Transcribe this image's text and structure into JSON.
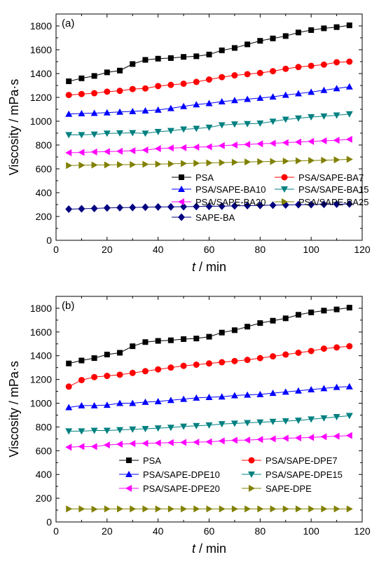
{
  "chart_data": [
    {
      "type": "line",
      "panel_label": "(a)",
      "xlabel_italic": "t",
      "xlabel_rest": " / min",
      "ylabel": "Viscosity / mPa·s",
      "xlim": [
        0,
        120
      ],
      "ylim": [
        0,
        1900
      ],
      "xticks": [
        0,
        20,
        40,
        60,
        80,
        100,
        120
      ],
      "yticks": [
        0,
        200,
        400,
        600,
        800,
        1000,
        1200,
        1400,
        1600,
        1800
      ],
      "grid": false,
      "legend": "bottom-center",
      "x": [
        5,
        10,
        15,
        20,
        25,
        30,
        35,
        40,
        45,
        50,
        55,
        60,
        65,
        70,
        75,
        80,
        85,
        90,
        95,
        100,
        105,
        110,
        115
      ],
      "series": [
        {
          "name": "PSA",
          "marker": "square",
          "color": "#000000",
          "values": [
            1335,
            1360,
            1380,
            1410,
            1425,
            1480,
            1515,
            1525,
            1530,
            1540,
            1545,
            1560,
            1595,
            1615,
            1645,
            1675,
            1695,
            1715,
            1745,
            1765,
            1780,
            1790,
            1805
          ]
        },
        {
          "name": "PSA/SAPE-BA7",
          "marker": "circle",
          "color": "#ff0000",
          "values": [
            1220,
            1228,
            1235,
            1248,
            1255,
            1270,
            1275,
            1295,
            1305,
            1315,
            1330,
            1350,
            1370,
            1385,
            1395,
            1405,
            1420,
            1440,
            1455,
            1465,
            1475,
            1495,
            1500
          ]
        },
        {
          "name": "PSA/SAPE-BA10",
          "marker": "triangle-up",
          "color": "#0000ff",
          "values": [
            1060,
            1065,
            1068,
            1072,
            1078,
            1082,
            1088,
            1095,
            1108,
            1125,
            1140,
            1150,
            1165,
            1175,
            1185,
            1195,
            1205,
            1220,
            1232,
            1245,
            1260,
            1275,
            1290
          ]
        },
        {
          "name": "PSA/SAPE-BA15",
          "marker": "triangle-down",
          "color": "#008080",
          "values": [
            885,
            885,
            890,
            898,
            900,
            902,
            898,
            912,
            920,
            932,
            938,
            948,
            968,
            975,
            978,
            982,
            998,
            1015,
            1025,
            1035,
            1042,
            1050,
            1060
          ]
        },
        {
          "name": "PSA/SAPE-BA20",
          "marker": "triangle-left",
          "color": "#ff00ff",
          "values": [
            735,
            738,
            742,
            745,
            748,
            752,
            758,
            770,
            775,
            778,
            782,
            785,
            795,
            800,
            805,
            810,
            815,
            820,
            825,
            830,
            835,
            840,
            848
          ]
        },
        {
          "name": "PSA/SAPE-BA25",
          "marker": "triangle-right",
          "color": "#808000",
          "values": [
            628,
            630,
            632,
            633,
            635,
            636,
            638,
            640,
            642,
            645,
            647,
            650,
            652,
            655,
            658,
            660,
            662,
            665,
            668,
            670,
            672,
            676,
            680
          ]
        },
        {
          "name": "SAPE-BA",
          "marker": "diamond",
          "color": "#000080",
          "values": [
            262,
            265,
            268,
            272,
            274,
            276,
            278,
            280,
            281,
            282,
            284,
            285,
            287,
            289,
            291,
            293,
            295,
            297,
            299,
            300,
            302,
            304,
            305
          ]
        }
      ]
    },
    {
      "type": "line",
      "panel_label": "(b)",
      "xlabel_italic": "t",
      "xlabel_rest": " / min",
      "ylabel": "Viscosity / mPa·s",
      "xlim": [
        0,
        120
      ],
      "ylim": [
        0,
        1900
      ],
      "xticks": [
        0,
        20,
        40,
        60,
        80,
        100,
        120
      ],
      "yticks": [
        0,
        200,
        400,
        600,
        800,
        1000,
        1200,
        1400,
        1600,
        1800
      ],
      "grid": false,
      "legend": "bottom-center",
      "x": [
        5,
        10,
        15,
        20,
        25,
        30,
        35,
        40,
        45,
        50,
        55,
        60,
        65,
        70,
        75,
        80,
        85,
        90,
        95,
        100,
        105,
        110,
        115
      ],
      "series": [
        {
          "name": "PSA",
          "marker": "square",
          "color": "#000000",
          "values": [
            1335,
            1360,
            1380,
            1410,
            1425,
            1480,
            1515,
            1525,
            1530,
            1540,
            1545,
            1560,
            1595,
            1615,
            1645,
            1675,
            1695,
            1715,
            1745,
            1765,
            1780,
            1790,
            1805
          ]
        },
        {
          "name": "PSA/SAPE-DPE7",
          "marker": "circle",
          "color": "#ff0000",
          "values": [
            1140,
            1195,
            1220,
            1230,
            1240,
            1255,
            1270,
            1285,
            1300,
            1315,
            1325,
            1335,
            1345,
            1355,
            1365,
            1380,
            1395,
            1410,
            1425,
            1440,
            1460,
            1470,
            1480
          ]
        },
        {
          "name": "PSA/SAPE-DPE10",
          "marker": "triangle-up",
          "color": "#0000ff",
          "values": [
            965,
            980,
            980,
            985,
            1000,
            1000,
            1010,
            1015,
            1025,
            1035,
            1045,
            1050,
            1055,
            1065,
            1070,
            1075,
            1085,
            1095,
            1105,
            1115,
            1125,
            1135,
            1140
          ]
        },
        {
          "name": "PSA/SAPE-DPE15",
          "marker": "triangle-down",
          "color": "#008080",
          "values": [
            765,
            765,
            770,
            770,
            775,
            780,
            785,
            790,
            795,
            805,
            810,
            815,
            825,
            830,
            835,
            840,
            845,
            850,
            855,
            865,
            875,
            885,
            895
          ]
        },
        {
          "name": "PSA/SAPE-DPE20",
          "marker": "triangle-left",
          "color": "#ff00ff",
          "values": [
            630,
            635,
            635,
            648,
            655,
            660,
            662,
            665,
            668,
            670,
            672,
            675,
            682,
            688,
            690,
            695,
            700,
            705,
            708,
            712,
            718,
            722,
            728
          ]
        },
        {
          "name": "SAPE-DPE",
          "marker": "triangle-right",
          "color": "#808000",
          "values": [
            110,
            110,
            108,
            110,
            110,
            110,
            110,
            110,
            110,
            110,
            110,
            110,
            110,
            110,
            110,
            110,
            110,
            110,
            110,
            110,
            110,
            110,
            110
          ]
        }
      ]
    }
  ]
}
